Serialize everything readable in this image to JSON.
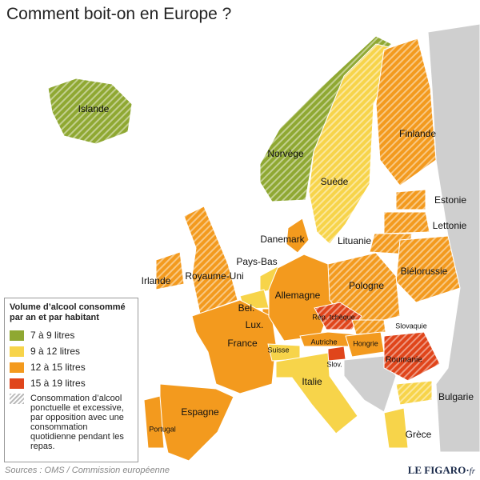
{
  "title": "Comment boit-on en Europe ?",
  "legend": {
    "title": "Volume d’alcool consommé par an et par habitant",
    "items": [
      {
        "label": "7 à 9 litres",
        "color": "#8fa832"
      },
      {
        "label": "9 à 12 litres",
        "color": "#f7d44a"
      },
      {
        "label": "12 à 15 litres",
        "color": "#f39a1e"
      },
      {
        "label": "15 à 19 litres",
        "color": "#e0451b"
      }
    ],
    "hatch_label": "Consommation d’alcool ponctuelle et excessive, par opposition avec une consommation quotidienne pendant les repas."
  },
  "countries": [
    {
      "name": "Islande",
      "category": 0,
      "hatched": true
    },
    {
      "name": "Norvège",
      "category": 0,
      "hatched": true
    },
    {
      "name": "Suède",
      "category": 1,
      "hatched": true
    },
    {
      "name": "Finlande",
      "category": 2,
      "hatched": true
    },
    {
      "name": "Estonie",
      "category": 2,
      "hatched": true
    },
    {
      "name": "Lettonie",
      "category": 2,
      "hatched": true
    },
    {
      "name": "Lituanie",
      "category": 2,
      "hatched": true
    },
    {
      "name": "Biélorussie",
      "category": 2,
      "hatched": true
    },
    {
      "name": "Danemark",
      "category": 2,
      "hatched": false
    },
    {
      "name": "Irlande",
      "category": 2,
      "hatched": true
    },
    {
      "name": "Royaume-Uni",
      "category": 2,
      "hatched": true
    },
    {
      "name": "Pays-Bas",
      "category": 1,
      "hatched": false
    },
    {
      "name": "Bel.",
      "category": 1,
      "hatched": false
    },
    {
      "name": "Lux.",
      "category": 2,
      "hatched": false
    },
    {
      "name": "France",
      "category": 2,
      "hatched": false
    },
    {
      "name": "Allemagne",
      "category": 2,
      "hatched": false
    },
    {
      "name": "Pologne",
      "category": 2,
      "hatched": true
    },
    {
      "name": "Rép. tchèque",
      "category": 3,
      "hatched": true
    },
    {
      "name": "Slovaquie",
      "category": 2,
      "hatched": true
    },
    {
      "name": "Autriche",
      "category": 2,
      "hatched": false
    },
    {
      "name": "Suisse",
      "category": 1,
      "hatched": false
    },
    {
      "name": "Hongrie",
      "category": 2,
      "hatched": false
    },
    {
      "name": "Slov.",
      "category": 3,
      "hatched": false
    },
    {
      "name": "Roumanie",
      "category": 3,
      "hatched": true
    },
    {
      "name": "Italie",
      "category": 1,
      "hatched": false
    },
    {
      "name": "Bulgarie",
      "category": 1,
      "hatched": true
    },
    {
      "name": "Grèce",
      "category": 1,
      "hatched": false
    },
    {
      "name": "Espagne",
      "category": 2,
      "hatched": false
    },
    {
      "name": "Portugal",
      "category": 2,
      "hatched": false
    }
  ],
  "sources": "Sources : OMS / Commission européenne",
  "logo": "LE FIGARO",
  "logo_suffix": "fr"
}
